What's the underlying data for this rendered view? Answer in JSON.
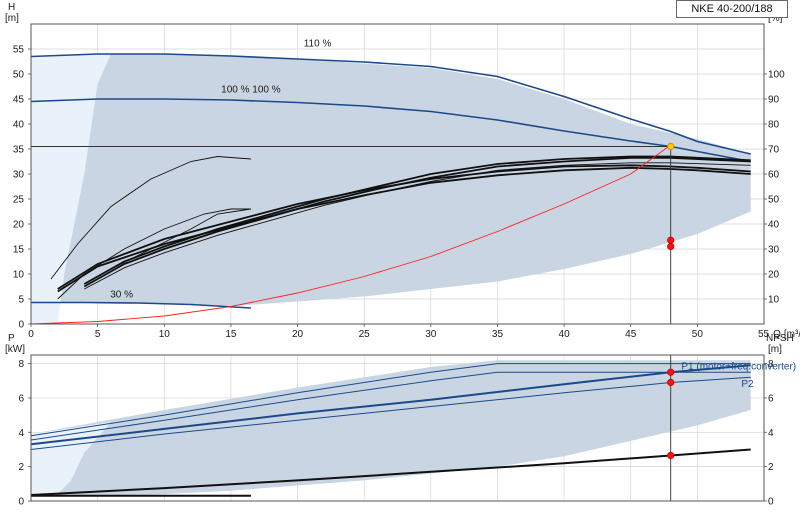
{
  "pump_model": "NKE 40-200/188",
  "colors": {
    "envelope_fill": "#c9d5e2",
    "light_fill": "#e9f1fa",
    "head_curve": "#1b4a8a",
    "eff_curve": "#111111",
    "system_curve": "#ff2020",
    "duty_point": "#ff1010",
    "duty_point_head": "#ffcc00",
    "grid": "#d4d4d4"
  },
  "chart_data": [
    {
      "type": "line",
      "name": "head-efficiency",
      "xlabel": "Q [m³/h]",
      "x_axis_label_parts": [
        "55",
        "Q",
        "[m³/h]"
      ],
      "ylabel": "H",
      "ylabel_unit": "[m]",
      "y2label": "eta",
      "y2label_unit": "[%]",
      "xlim": [
        0,
        55
      ],
      "ylim": [
        0,
        60
      ],
      "y2lim": [
        0,
        120
      ],
      "xticks": [
        "0",
        "5",
        "10",
        "15",
        "20",
        "25",
        "30",
        "35",
        "40",
        "45",
        "50"
      ],
      "yticks": [
        "0",
        "5",
        "10",
        "15",
        "20",
        "25",
        "30",
        "35",
        "40",
        "45",
        "50",
        "55"
      ],
      "y2ticks": [
        "10",
        "20",
        "30",
        "40",
        "50",
        "60",
        "70",
        "80",
        "90",
        "100"
      ],
      "grid": true,
      "curve_labels": [
        "110 %",
        "100 %  100 %",
        "30 %"
      ],
      "envelope_upper": {
        "x": [
          0,
          5,
          10,
          20,
          30,
          35,
          40,
          45,
          50,
          54
        ],
        "y": [
          53.5,
          54,
          54,
          53,
          51.2,
          49,
          45,
          40,
          37,
          34
        ]
      },
      "envelope_lower": {
        "x": [
          0,
          5,
          10,
          15,
          20,
          25,
          30,
          35,
          40,
          45,
          50,
          54
        ],
        "y": [
          4.3,
          4.3,
          4,
          3.6,
          4.5,
          5.5,
          7,
          8.5,
          11,
          14,
          18,
          22.5
        ]
      },
      "light_region": [
        [
          0,
          53.5
        ],
        [
          6,
          54
        ],
        [
          5,
          48
        ],
        [
          4,
          30
        ],
        [
          2.5,
          10
        ],
        [
          2,
          0
        ],
        [
          0,
          0
        ]
      ],
      "series": [
        {
          "name": "110 %",
          "kind": "head",
          "x": [
            0,
            5,
            10,
            15,
            20,
            25,
            30,
            35,
            40,
            45,
            48,
            50,
            54
          ],
          "y": [
            53.5,
            54,
            54,
            53.6,
            53,
            52.4,
            51.5,
            49.5,
            45.5,
            41,
            38.5,
            36.5,
            34
          ]
        },
        {
          "name": "100 %",
          "kind": "head",
          "x": [
            0,
            5,
            10,
            15,
            20,
            25,
            30,
            35,
            40,
            45,
            48,
            50,
            54
          ],
          "y": [
            44.5,
            45,
            45,
            44.8,
            44.3,
            43.6,
            42.5,
            40.8,
            38.6,
            36.6,
            35.5,
            34.5,
            32.5
          ]
        },
        {
          "name": "30 %",
          "kind": "head",
          "x": [
            0,
            4,
            8,
            12,
            16.5
          ],
          "y": [
            4.3,
            4.3,
            4.2,
            3.9,
            3.2
          ]
        },
        {
          "name": "eta",
          "kind": "eff",
          "x": [
            2,
            5,
            10,
            15,
            20,
            25,
            30,
            35,
            40,
            45,
            48,
            50,
            54
          ],
          "y": [
            14,
            24,
            34,
            41,
            48,
            53.5,
            58,
            61,
            63,
            63.5,
            63,
            62.5,
            61
          ]
        },
        {
          "name": "eta-1",
          "kind": "eff",
          "x": [
            2,
            5,
            10,
            15,
            20,
            25,
            30,
            35,
            40,
            45,
            48,
            50,
            54
          ],
          "y": [
            13,
            23,
            32,
            39,
            46,
            51.5,
            56.5,
            59.5,
            61.5,
            62.5,
            62,
            61.5,
            60
          ]
        },
        {
          "name": "eta-2",
          "kind": "eff",
          "x": [
            4,
            7,
            10,
            14,
            18,
            22,
            26,
            30,
            35,
            40,
            45,
            48,
            54
          ],
          "y": [
            16,
            25,
            31,
            38,
            44,
            50,
            55,
            60,
            64,
            66,
            67,
            67,
            65.5
          ]
        },
        {
          "name": "eta-3",
          "kind": "eff",
          "x": [
            4,
            7,
            10,
            14,
            18,
            22,
            26,
            30,
            35,
            40,
            45,
            48,
            54
          ],
          "y": [
            15,
            24,
            30,
            37,
            43,
            49,
            54,
            58.5,
            63,
            65,
            66.5,
            66.5,
            65
          ]
        },
        {
          "name": "eta-4",
          "kind": "eff_thin",
          "x": [
            4,
            7,
            10,
            14,
            18,
            22,
            26,
            30,
            35,
            40,
            45,
            48,
            54
          ],
          "y": [
            14,
            22.5,
            28.5,
            35.5,
            41.5,
            47.5,
            52.5,
            57,
            61.5,
            63.5,
            64.5,
            64.5,
            63.5
          ]
        },
        {
          "name": "eta-5",
          "kind": "eff_thin",
          "x": [
            1.5,
            3.5,
            6,
            9,
            12,
            14,
            16.5
          ],
          "y": [
            18,
            32,
            47,
            58,
            65,
            67,
            66
          ]
        },
        {
          "name": "eta-6",
          "kind": "eff_thin",
          "x": [
            4,
            6,
            9,
            12,
            14,
            16.5
          ],
          "y": [
            16,
            22,
            30,
            38,
            44,
            46
          ]
        },
        {
          "name": "eta-7",
          "kind": "eff_thin",
          "x": [
            2,
            4,
            7,
            10,
            13,
            15,
            16.5
          ],
          "y": [
            10,
            20,
            30,
            38,
            44,
            46,
            46
          ]
        },
        {
          "name": "system",
          "kind": "system",
          "x": [
            0,
            5,
            10,
            15,
            20,
            25,
            30,
            35,
            40,
            45,
            48
          ],
          "y": [
            0,
            0.5,
            1.6,
            3.5,
            6.2,
            9.5,
            13.5,
            18.5,
            24,
            30,
            35.8
          ]
        }
      ],
      "duty_lines": {
        "x": 48,
        "y": 35.5
      },
      "duty_points": [
        {
          "x": 48,
          "y": 35.5,
          "role": "head"
        },
        {
          "x": 48,
          "y": 33.5,
          "role": "eff"
        },
        {
          "x": 48,
          "y": 31,
          "role": "eff"
        }
      ]
    },
    {
      "type": "line",
      "name": "power-npsh",
      "ylabel": "P",
      "ylabel_unit": "[kW]",
      "y2label": "NPSH",
      "y2label_unit": "[m]",
      "xlim": [
        0,
        55
      ],
      "ylim": [
        0,
        8.5
      ],
      "y2lim": [
        0,
        8.5
      ],
      "yticks": [
        "0",
        "2",
        "4",
        "6",
        "8"
      ],
      "y2ticks": [
        "0",
        "2",
        "4",
        "6",
        "8"
      ],
      "grid": true,
      "envelope_upper": {
        "x": [
          0,
          5,
          10,
          20,
          30,
          35,
          40,
          45,
          50,
          54
        ],
        "y": [
          3.9,
          4.6,
          5.3,
          6.6,
          7.8,
          8.2,
          8.2,
          8.2,
          8.2,
          8.2
        ]
      },
      "envelope_lower": {
        "x": [
          0,
          5,
          10,
          15,
          20,
          25,
          30,
          35,
          40,
          45,
          50,
          54
        ],
        "y": [
          0.3,
          0.3,
          0.4,
          0.6,
          0.9,
          1.2,
          1.6,
          2.0,
          2.6,
          3.5,
          4.4,
          5.3
        ]
      },
      "light_region": [
        [
          0,
          3.9
        ],
        [
          6,
          4.6
        ],
        [
          4,
          2.8
        ],
        [
          3,
          1.2
        ],
        [
          2,
          0.4
        ],
        [
          0,
          0.3
        ]
      ],
      "series_labels": [
        "P1 (motor+freq.converter)",
        "P2"
      ],
      "series": [
        {
          "name": "P1 (motor+freq.converter)",
          "kind": "power",
          "x": [
            0,
            10,
            20,
            30,
            40,
            48,
            54
          ],
          "y": [
            3.3,
            4.2,
            5.1,
            5.9,
            6.8,
            7.5,
            7.9
          ]
        },
        {
          "name": "P2",
          "kind": "power_thin",
          "x": [
            0,
            10,
            20,
            30,
            40,
            48,
            54
          ],
          "y": [
            3.0,
            3.9,
            4.7,
            5.5,
            6.3,
            6.9,
            7.2
          ]
        },
        {
          "name": "p-110-a",
          "kind": "power_thin",
          "x": [
            0,
            10,
            20,
            30,
            35,
            40,
            48,
            54
          ],
          "y": [
            3.8,
            5.0,
            6.3,
            7.5,
            8.0,
            8.0,
            8.0,
            8.0
          ]
        },
        {
          "name": "p-110-b",
          "kind": "power_thin",
          "x": [
            0,
            10,
            20,
            30,
            35,
            40,
            48,
            54
          ],
          "y": [
            3.55,
            4.7,
            5.9,
            7.0,
            7.5,
            7.5,
            7.5,
            7.5
          ]
        },
        {
          "name": "npsh",
          "kind": "npsh",
          "x": [
            0,
            10,
            20,
            30,
            40,
            48,
            54
          ],
          "y": [
            0.35,
            0.75,
            1.2,
            1.7,
            2.2,
            2.65,
            3.0
          ]
        },
        {
          "name": "npsh-30",
          "kind": "npsh",
          "x": [
            0,
            5,
            10,
            16.5
          ],
          "y": [
            0.3,
            0.3,
            0.3,
            0.3
          ]
        }
      ],
      "duty_lines": {
        "x": 48
      },
      "duty_points": [
        {
          "x": 48,
          "y": 7.5,
          "role": "p"
        },
        {
          "x": 48,
          "y": 6.9,
          "role": "p"
        },
        {
          "x": 48,
          "y": 2.65,
          "role": "p"
        }
      ]
    }
  ]
}
